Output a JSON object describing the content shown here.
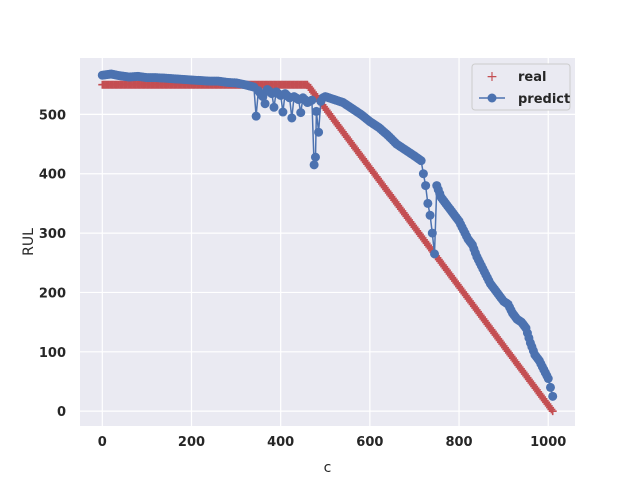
{
  "chart_data": {
    "type": "line",
    "xlabel": "c",
    "ylabel": "RUL",
    "xlim": [
      -50,
      1060
    ],
    "ylim": [
      -25,
      595
    ],
    "xticks": [
      0,
      200,
      400,
      600,
      800,
      1000
    ],
    "yticks": [
      0,
      100,
      200,
      300,
      400,
      500
    ],
    "grid": true,
    "legend_position": "top-right",
    "colors": {
      "real": "#c44e52",
      "predict": "#4c72b0",
      "background": "#eaeaf2",
      "grid": "#ffffff"
    },
    "series": [
      {
        "name": "real",
        "marker": "+",
        "points": [
          [
            0,
            550
          ],
          [
            100,
            550
          ],
          [
            200,
            550
          ],
          [
            300,
            550
          ],
          [
            400,
            550
          ],
          [
            460,
            550
          ],
          [
            500,
            510
          ],
          [
            600,
            410
          ],
          [
            700,
            310
          ],
          [
            800,
            210
          ],
          [
            900,
            110
          ],
          [
            1010,
            0
          ]
        ]
      },
      {
        "name": "predict",
        "marker": "o",
        "points": [
          [
            0,
            566
          ],
          [
            20,
            568
          ],
          [
            40,
            565
          ],
          [
            60,
            563
          ],
          [
            80,
            564
          ],
          [
            100,
            562
          ],
          [
            120,
            562
          ],
          [
            140,
            561
          ],
          [
            160,
            560
          ],
          [
            180,
            559
          ],
          [
            200,
            558
          ],
          [
            220,
            557
          ],
          [
            240,
            556
          ],
          [
            260,
            556
          ],
          [
            280,
            554
          ],
          [
            300,
            553
          ],
          [
            320,
            550
          ],
          [
            340,
            546
          ],
          [
            345,
            497
          ],
          [
            350,
            540
          ],
          [
            360,
            530
          ],
          [
            365,
            518
          ],
          [
            370,
            542
          ],
          [
            380,
            535
          ],
          [
            385,
            512
          ],
          [
            390,
            538
          ],
          [
            400,
            532
          ],
          [
            405,
            504
          ],
          [
            410,
            535
          ],
          [
            420,
            528
          ],
          [
            425,
            494
          ],
          [
            430,
            530
          ],
          [
            440,
            525
          ],
          [
            445,
            503
          ],
          [
            450,
            528
          ],
          [
            460,
            520
          ],
          [
            470,
            524
          ],
          [
            475,
            415
          ],
          [
            478,
            428
          ],
          [
            480,
            505
          ],
          [
            485,
            470
          ],
          [
            490,
            522
          ],
          [
            495,
            528
          ],
          [
            500,
            530
          ],
          [
            520,
            525
          ],
          [
            540,
            520
          ],
          [
            560,
            510
          ],
          [
            580,
            500
          ],
          [
            600,
            488
          ],
          [
            620,
            478
          ],
          [
            640,
            465
          ],
          [
            660,
            450
          ],
          [
            680,
            440
          ],
          [
            700,
            430
          ],
          [
            715,
            422
          ],
          [
            720,
            400
          ],
          [
            725,
            380
          ],
          [
            730,
            350
          ],
          [
            735,
            330
          ],
          [
            740,
            300
          ],
          [
            745,
            265
          ],
          [
            750,
            380
          ],
          [
            760,
            360
          ],
          [
            770,
            350
          ],
          [
            780,
            340
          ],
          [
            790,
            330
          ],
          [
            800,
            320
          ],
          [
            810,
            305
          ],
          [
            820,
            290
          ],
          [
            830,
            280
          ],
          [
            840,
            260
          ],
          [
            850,
            245
          ],
          [
            860,
            230
          ],
          [
            870,
            215
          ],
          [
            880,
            205
          ],
          [
            890,
            195
          ],
          [
            900,
            185
          ],
          [
            910,
            180
          ],
          [
            920,
            165
          ],
          [
            930,
            155
          ],
          [
            940,
            150
          ],
          [
            950,
            140
          ],
          [
            960,
            115
          ],
          [
            970,
            95
          ],
          [
            980,
            85
          ],
          [
            990,
            70
          ],
          [
            1000,
            55
          ],
          [
            1005,
            40
          ],
          [
            1010,
            25
          ]
        ]
      }
    ]
  }
}
